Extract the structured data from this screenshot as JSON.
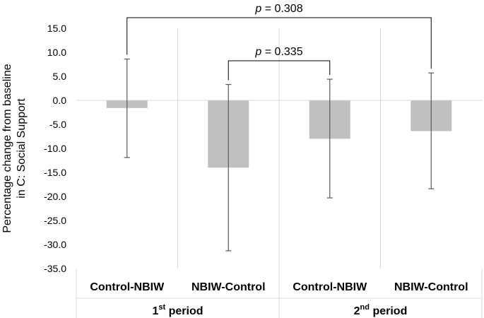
{
  "chart_data": {
    "type": "bar",
    "title": "",
    "ylabel_line1": "Percentage change from baseline",
    "ylabel_line2": "in C: Social Support",
    "ylim": [
      -35,
      15
    ],
    "ytick_step": 5,
    "yticks": [
      "15.0",
      "10.0",
      "5.0",
      "0.0",
      "-5.0",
      "-10.0",
      "-15.0",
      "-20.0",
      "-25.0",
      "-30.0",
      "-35.0"
    ],
    "categories": [
      "Control-NBIW",
      "NBIW-Control",
      "Control-NBIW",
      "NBIW-Control"
    ],
    "values": [
      -1.6,
      -14.0,
      -8.0,
      -6.4
    ],
    "error_bars": [
      {
        "low": -11.9,
        "high": 8.6
      },
      {
        "low": -31.3,
        "high": 3.3
      },
      {
        "low": -20.3,
        "high": 4.4
      },
      {
        "low": -18.4,
        "high": 5.7
      }
    ],
    "groups": [
      {
        "base": "1",
        "sup": "st",
        "rest": " period"
      },
      {
        "base": "2",
        "sup": "nd",
        "rest": " period"
      }
    ],
    "comparisons": [
      {
        "from": 0,
        "to": 3,
        "p_italic": "p",
        "p_rest": " = 0.308"
      },
      {
        "from": 1,
        "to": 2,
        "p_italic": "p",
        "p_rest": " = 0.335"
      }
    ],
    "bar_color": "#c0c0c0",
    "error_color": "#595959",
    "grid_color": "#d9d9d9"
  }
}
